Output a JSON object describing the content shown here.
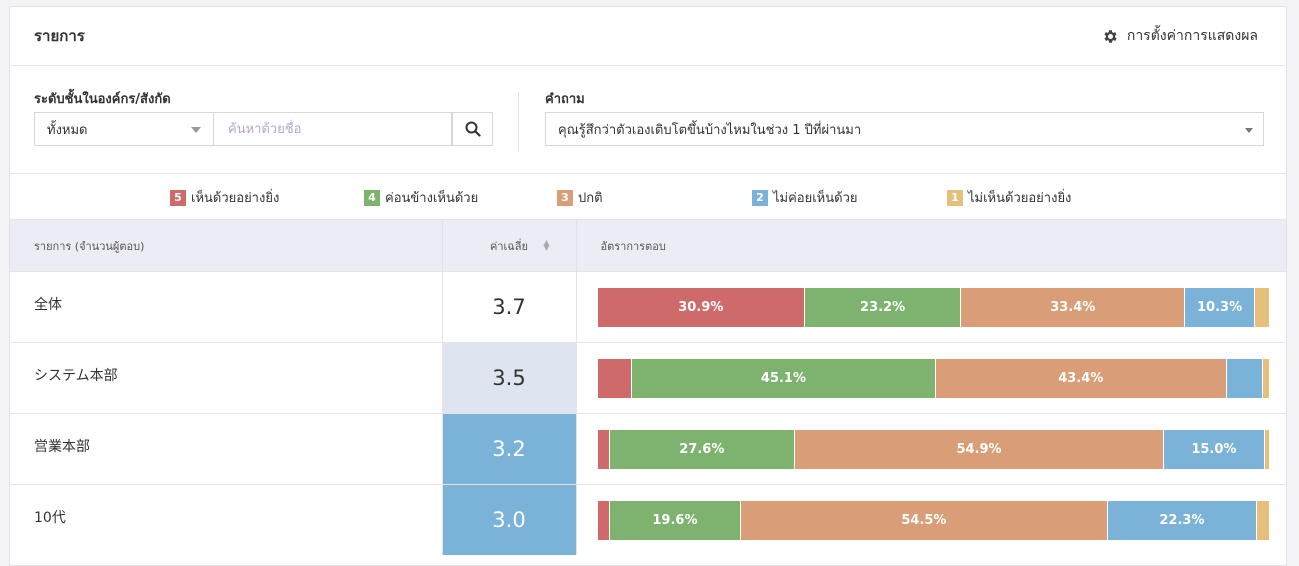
{
  "header": {
    "title": "รายการ",
    "settings_label": "การตั้งค่าการแสดงผล",
    "settings_icon": "gear-icon"
  },
  "filters": {
    "org_level_label": "ระดับชั้นในองค์กร/สังกัด",
    "org_level_value": "ทั้งหมด",
    "search_placeholder": "ค้นหาด้วยชื่อ",
    "search_icon": "search-icon",
    "question_label": "คำถาม",
    "question_value": "คุณรู้สึกว่าตัวเองเติบโตขึ้นบ้างไหมในช่วง 1 ปีที่ผ่านมา"
  },
  "legend": [
    {
      "num": "5",
      "label": "เห็นด้วยอย่างยิ่ง",
      "color": "#cf6a6a"
    },
    {
      "num": "4",
      "label": "ค่อนข้างเห็นด้วย",
      "color": "#7db36e"
    },
    {
      "num": "3",
      "label": "ปกติ",
      "color": "#d99e77"
    },
    {
      "num": "2",
      "label": "ไม่ค่อยเห็นด้วย",
      "color": "#7ab2d8"
    },
    {
      "num": "1",
      "label": "ไม่เห็นด้วยอย่างยิ่ง",
      "color": "#e6c07a"
    }
  ],
  "table": {
    "columns": {
      "item": "รายการ (จำนวนผู้ตอบ)",
      "average": "ค่าเฉลี่ย",
      "rate": "อัตราการตอบ"
    },
    "rows": [
      {
        "name": "全体",
        "avg": "3.7",
        "avg_bg": "#ffffff",
        "segments": [
          {
            "pct": 30.9,
            "label": "30.9%"
          },
          {
            "pct": 23.2,
            "label": "23.2%"
          },
          {
            "pct": 33.4,
            "label": "33.4%"
          },
          {
            "pct": 10.3,
            "label": "10.3%"
          },
          {
            "pct": 2.2,
            "label": ""
          }
        ]
      },
      {
        "name": "システム本部",
        "avg": "3.5",
        "avg_bg": "#dfe4f1",
        "segments": [
          {
            "pct": 5.2,
            "label": ""
          },
          {
            "pct": 45.1,
            "label": "45.1%"
          },
          {
            "pct": 43.4,
            "label": "43.4%"
          },
          {
            "pct": 5.3,
            "label": ""
          },
          {
            "pct": 1.0,
            "label": ""
          }
        ]
      },
      {
        "name": "営業本部",
        "avg": "3.2",
        "avg_bg": "#7ab2d8",
        "segments": [
          {
            "pct": 1.8,
            "label": ""
          },
          {
            "pct": 27.6,
            "label": "27.6%"
          },
          {
            "pct": 54.9,
            "label": "54.9%"
          },
          {
            "pct": 15.0,
            "label": "15.0%"
          },
          {
            "pct": 0.7,
            "label": ""
          }
        ]
      },
      {
        "name": "10代",
        "avg": "3.0",
        "avg_bg": "#7ab2d8",
        "segments": [
          {
            "pct": 1.8,
            "label": ""
          },
          {
            "pct": 19.6,
            "label": "19.6%"
          },
          {
            "pct": 54.5,
            "label": "54.5%"
          },
          {
            "pct": 22.3,
            "label": "22.3%"
          },
          {
            "pct": 1.8,
            "label": ""
          }
        ]
      }
    ]
  }
}
